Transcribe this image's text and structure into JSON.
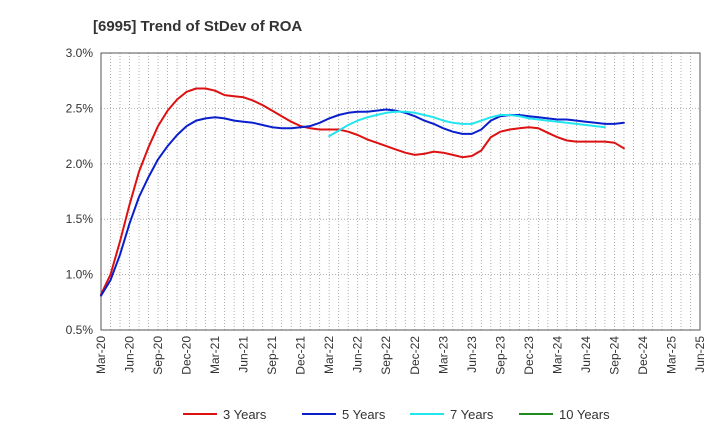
{
  "chart_data": {
    "type": "line",
    "title": "[6995]  Trend of StDev of ROA",
    "xlabel": "",
    "ylabel": "",
    "ylim": [
      0.5,
      3.0
    ],
    "y_ticks": [
      0.5,
      1.0,
      1.5,
      2.0,
      2.5,
      3.0
    ],
    "y_tick_labels": [
      "0.5%",
      "1.0%",
      "1.5%",
      "2.0%",
      "2.5%",
      "3.0%"
    ],
    "x_tick_labels": [
      "Mar-20",
      "Jun-20",
      "Sep-20",
      "Dec-20",
      "Mar-21",
      "Jun-21",
      "Sep-21",
      "Dec-21",
      "Mar-22",
      "Jun-22",
      "Sep-22",
      "Dec-22",
      "Mar-23",
      "Jun-23",
      "Sep-23",
      "Dec-23",
      "Mar-24",
      "Jun-24",
      "Sep-24",
      "Dec-24",
      "Mar-25",
      "Jun-25"
    ],
    "grid": true,
    "legend_position": "bottom",
    "series": [
      {
        "name": "3 Years",
        "color": "#dd1111",
        "start_index": 0,
        "values": [
          0.82,
          1.0,
          1.3,
          1.63,
          1.93,
          2.15,
          2.34,
          2.48,
          2.58,
          2.65,
          2.68,
          2.68,
          2.66,
          2.62,
          2.61,
          2.6,
          2.57,
          2.53,
          2.48,
          2.43,
          2.38,
          2.34,
          2.32,
          2.31,
          2.31,
          2.31,
          2.29,
          2.26,
          2.22,
          2.19,
          2.16,
          2.13,
          2.1,
          2.08,
          2.09,
          2.11,
          2.1,
          2.08,
          2.06,
          2.07,
          2.12,
          2.24,
          2.29,
          2.31,
          2.32,
          2.33,
          2.32,
          2.28,
          2.24,
          2.21,
          2.2,
          2.2,
          2.2,
          2.2,
          2.19,
          2.14
        ]
      },
      {
        "name": "5 Years",
        "color": "#0a1fcc",
        "start_index": 0,
        "values": [
          0.81,
          0.95,
          1.18,
          1.46,
          1.7,
          1.88,
          2.04,
          2.16,
          2.26,
          2.34,
          2.39,
          2.41,
          2.42,
          2.41,
          2.39,
          2.38,
          2.37,
          2.35,
          2.33,
          2.32,
          2.32,
          2.33,
          2.34,
          2.37,
          2.41,
          2.44,
          2.46,
          2.47,
          2.47,
          2.48,
          2.49,
          2.48,
          2.46,
          2.43,
          2.39,
          2.36,
          2.32,
          2.29,
          2.27,
          2.27,
          2.31,
          2.39,
          2.43,
          2.44,
          2.44,
          2.43,
          2.42,
          2.41,
          2.4,
          2.4,
          2.39,
          2.38,
          2.37,
          2.36,
          2.36,
          2.37
        ]
      },
      {
        "name": "7 Years",
        "color": "#22e5ee",
        "start_index": 24,
        "values": [
          2.25,
          2.3,
          2.35,
          2.39,
          2.42,
          2.44,
          2.46,
          2.47,
          2.47,
          2.46,
          2.44,
          2.42,
          2.39,
          2.37,
          2.36,
          2.36,
          2.39,
          2.42,
          2.44,
          2.44,
          2.43,
          2.41,
          2.4,
          2.39,
          2.38,
          2.37,
          2.36,
          2.35,
          2.34,
          2.33
        ]
      },
      {
        "name": "10 Years",
        "color": "#1f8a1f",
        "start_index": 0,
        "values": []
      }
    ]
  }
}
